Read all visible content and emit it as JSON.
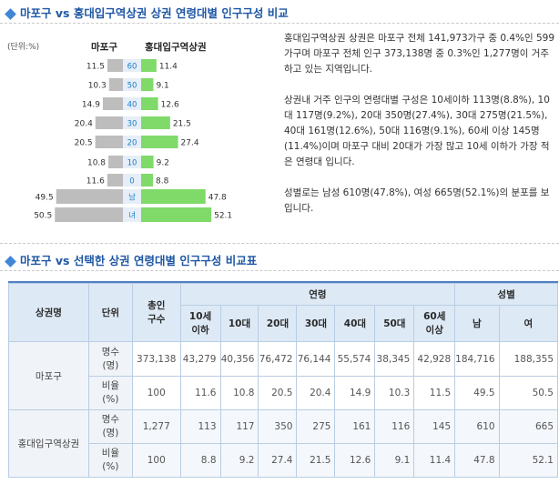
{
  "section1": {
    "title_a": "마포구",
    "title_vs": "vs",
    "title_b": "홍대입구역상권 상권 연령대별 인구구성 비교"
  },
  "section2": {
    "title_a": "마포구",
    "title_vs": "vs",
    "title_b": "선택한 상권 연령대별 인구구성 비교표"
  },
  "pyramid": {
    "unit": "(단위:%)",
    "left_header": "마포구",
    "right_header": "홍대입구역상권"
  },
  "description": {
    "p1": "홍대입구역상권 상권은 마포구 전체 141,973가구 중 0.4%인 599가구며 마포구 전체 인구 373,138명 중 0.3%인 1,277명이 거주하고 있는 지역입니다.",
    "p2": "상권내 거주 인구의 연령대별 구성은 10세이하 113명(8.8%), 10대 117명(9.2%), 20대 350명(27.4%), 30대 275명(21.5%), 40대 161명(12.6%), 50대 116명(9.1%), 60세 이상 145명(11.4%)이며 마포구 대비 20대가 가장 많고 10세 이하가 가장 적은 연령대 입니다.",
    "p3": "성별로는 남성 610명(47.8%), 여성 665명(52.1%)의 분포를 보입니다."
  },
  "chart_data": {
    "type": "bar",
    "orientation": "horizontal-mirrored",
    "categories": [
      "60",
      "50",
      "40",
      "30",
      "20",
      "10",
      "0",
      "남",
      "녀"
    ],
    "series": [
      {
        "name": "마포구",
        "values": [
          11.5,
          10.3,
          14.9,
          20.4,
          20.5,
          10.8,
          11.6,
          49.5,
          50.5
        ],
        "color": "#bdbdbd"
      },
      {
        "name": "홍대입구역상권",
        "values": [
          11.4,
          9.1,
          12.6,
          21.5,
          27.4,
          9.2,
          8.8,
          47.8,
          52.1
        ],
        "color": "#7fda6a"
      }
    ],
    "label_colors": [
      "#1f7ec4",
      "#1f7ec4",
      "#1f7ec4",
      "#1f7ec4",
      "#1f7ec4",
      "#1f7ec4",
      "#1f7ec4",
      "#1f7ec4",
      "#1f7ec4"
    ]
  },
  "table": {
    "headers": {
      "area": "상권명",
      "unit": "단위",
      "total": "총인구수",
      "age_group": "연령",
      "gender_group": "성별",
      "ages": [
        "10세 이하",
        "10대",
        "20대",
        "30대",
        "40대",
        "50대",
        "60세 이상"
      ],
      "genders": [
        "남",
        "여"
      ]
    },
    "rows": [
      {
        "area": "마포구",
        "unit": "명수 (명)",
        "values": [
          "373,138",
          "43,279",
          "40,356",
          "76,472",
          "76,144",
          "55,574",
          "38,345",
          "42,928",
          "184,716",
          "188,355"
        ]
      },
      {
        "area": "",
        "unit": "비율 (%)",
        "values": [
          "100",
          "11.6",
          "10.8",
          "20.5",
          "20.4",
          "14.9",
          "10.3",
          "11.5",
          "49.5",
          "50.5"
        ]
      },
      {
        "area": "홍대입구역상권",
        "unit": "명수 (명)",
        "values": [
          "1,277",
          "113",
          "117",
          "350",
          "275",
          "161",
          "116",
          "145",
          "610",
          "665"
        ]
      },
      {
        "area": "",
        "unit": "비율 (%)",
        "values": [
          "100",
          "8.8",
          "9.2",
          "27.4",
          "21.5",
          "12.6",
          "9.1",
          "11.4",
          "47.8",
          "52.1"
        ]
      }
    ]
  }
}
